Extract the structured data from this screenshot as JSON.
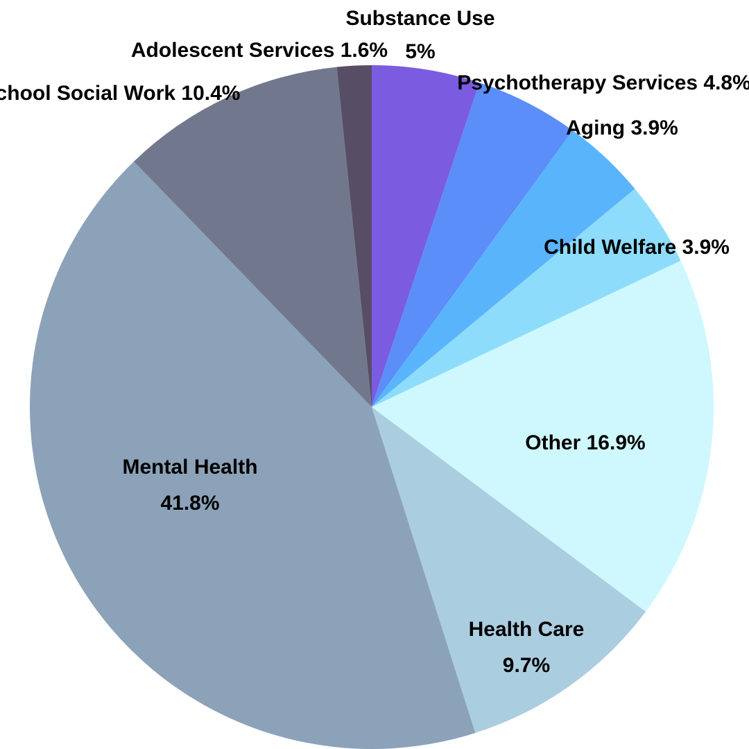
{
  "chart_data": {
    "type": "pie",
    "title": "",
    "slices": [
      {
        "label": "Substance Use",
        "value_label": "5%",
        "value": 5.0,
        "color": "#7b5ce0"
      },
      {
        "label": "Psychotherapy Services",
        "value_label": "4.8%",
        "value": 4.8,
        "color": "#5b8ef9"
      },
      {
        "label": "Aging",
        "value_label": "3.9%",
        "value": 3.9,
        "color": "#5ab4fc"
      },
      {
        "label": "Child Welfare",
        "value_label": "3.9%",
        "value": 3.9,
        "color": "#8edcfb"
      },
      {
        "label": "Other",
        "value_label": "16.9%",
        "value": 16.9,
        "color": "#cff8fe"
      },
      {
        "label": "Health Care",
        "value_label": "9.7%",
        "value": 9.7,
        "color": "#abcde0"
      },
      {
        "label": "Mental Health",
        "value_label": "41.8%",
        "value": 41.8,
        "color": "#8ca2b8"
      },
      {
        "label": "School Social Work",
        "value_label": "10.4%",
        "value": 10.4,
        "color": "#71788e"
      },
      {
        "label": "Adolescent Services",
        "value_label": "1.6%",
        "value": 1.6,
        "color": "#574e65"
      }
    ]
  }
}
